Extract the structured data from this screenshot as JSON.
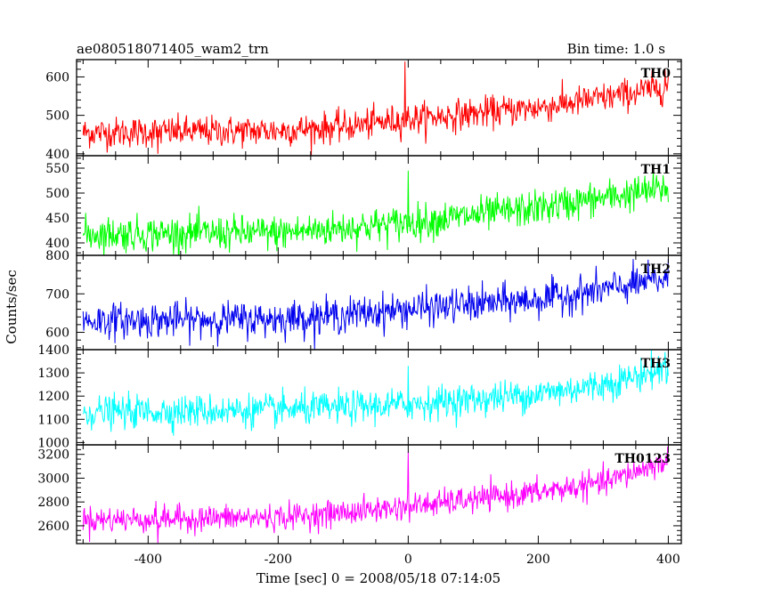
{
  "header": {
    "title": "ae080518071405_wam2_trn",
    "bin_time": "Bin time: 1.0 s"
  },
  "axes": {
    "xlabel": "Time [sec] 0 = 2008/05/18 07:14:05",
    "ylabel": "Counts/sec"
  },
  "chart_data": {
    "type": "line",
    "title": "ae080518071405_wam2_trn",
    "subtitle": "Bin time: 1.0 s",
    "xlabel": "Time [sec] 0 = 2008/05/18 07:14:05",
    "ylabel": "Counts/sec",
    "xlim": [
      -510,
      420
    ],
    "x_ticks": [
      -400,
      -200,
      0,
      200,
      400
    ],
    "bin_time_s": 1.0,
    "x_range": [
      -500,
      400
    ],
    "grid": false,
    "panels": [
      {
        "name": "TH0",
        "color": "#ff0000",
        "ylim": [
          395,
          645
        ],
        "y_ticks": [
          400,
          500,
          600
        ],
        "trend": [
          [
            -500,
            455
          ],
          [
            -200,
            460
          ],
          [
            -100,
            470
          ],
          [
            0,
            490
          ],
          [
            100,
            505
          ],
          [
            200,
            520
          ],
          [
            300,
            545
          ],
          [
            400,
            575
          ]
        ],
        "noise_amplitude": 40,
        "spikes": [
          [
            -5,
            640
          ],
          [
            395,
            620
          ],
          [
            -385,
            400
          ]
        ]
      },
      {
        "name": "TH1",
        "color": "#00ff00",
        "ylim": [
          375,
          575
        ],
        "y_ticks": [
          400,
          450,
          500,
          550
        ],
        "trend": [
          [
            -500,
            418
          ],
          [
            -200,
            420
          ],
          [
            -100,
            430
          ],
          [
            0,
            440
          ],
          [
            100,
            455
          ],
          [
            200,
            470
          ],
          [
            300,
            490
          ],
          [
            400,
            510
          ]
        ],
        "noise_amplitude": 35,
        "spikes": [
          [
            0,
            545
          ]
        ]
      },
      {
        "name": "TH2",
        "color": "#0000ee",
        "ylim": [
          555,
          800
        ],
        "y_ticks": [
          600,
          700,
          800
        ],
        "trend": [
          [
            -500,
            630
          ],
          [
            -200,
            635
          ],
          [
            -100,
            645
          ],
          [
            0,
            660
          ],
          [
            100,
            672
          ],
          [
            200,
            685
          ],
          [
            300,
            710
          ],
          [
            400,
            740
          ]
        ],
        "noise_amplitude": 45,
        "spikes": []
      },
      {
        "name": "TH3",
        "color": "#00ffff",
        "ylim": [
          990,
          1400
        ],
        "y_ticks": [
          1000,
          1100,
          1200,
          1300,
          1400
        ],
        "trend": [
          [
            -500,
            1130
          ],
          [
            -200,
            1140
          ],
          [
            -100,
            1150
          ],
          [
            0,
            1165
          ],
          [
            100,
            1185
          ],
          [
            200,
            1210
          ],
          [
            300,
            1250
          ],
          [
            400,
            1320
          ]
        ],
        "noise_amplitude": 70,
        "spikes": [
          [
            0,
            1330
          ],
          [
            395,
            1390
          ]
        ]
      },
      {
        "name": "TH0123",
        "color": "#ff00ff",
        "ylim": [
          2450,
          3280
        ],
        "y_ticks": [
          2600,
          2800,
          3000,
          3200
        ],
        "trend": [
          [
            -500,
            2650
          ],
          [
            -200,
            2670
          ],
          [
            -100,
            2710
          ],
          [
            0,
            2760
          ],
          [
            100,
            2820
          ],
          [
            200,
            2880
          ],
          [
            300,
            2960
          ],
          [
            400,
            3150
          ]
        ],
        "noise_amplitude": 110,
        "spikes": [
          [
            0,
            3220
          ],
          [
            -385,
            2450
          ]
        ]
      }
    ]
  }
}
